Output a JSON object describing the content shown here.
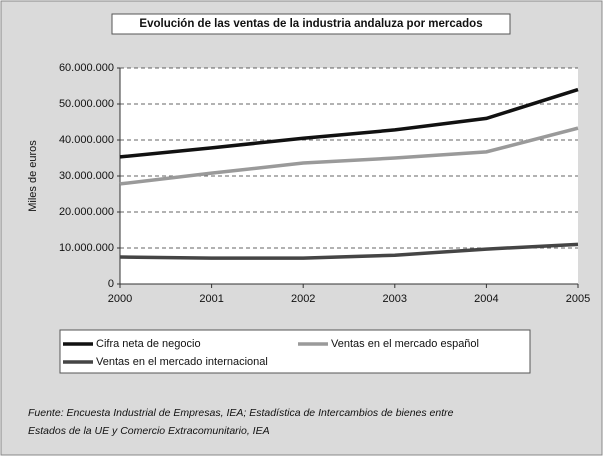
{
  "chart_data": {
    "type": "line",
    "title": "Evolución de las ventas de la industria andaluza por mercados",
    "y_label": "Miles de euros",
    "x": [
      2000,
      2001,
      2002,
      2003,
      2004,
      2005
    ],
    "xlim": [
      2000,
      2005
    ],
    "xticks": [
      2000,
      2001,
      2002,
      2003,
      2004,
      2005
    ],
    "ylim": [
      0,
      60000000
    ],
    "yticks": [
      0,
      {
        "value": 10000000,
        "label": "10.000.000"
      },
      {
        "value": 20000000,
        "label": "20.000.000"
      },
      {
        "value": 30000000,
        "label": "30.000.000"
      },
      {
        "value": 40000000,
        "label": "40.000.000"
      },
      {
        "value": 50000000,
        "label": "50.000.000"
      },
      {
        "value": 60000000,
        "label": "60.000.000"
      }
    ],
    "grid": true,
    "legend": "bottom",
    "series": [
      {
        "name": "Cifra neta de negocio",
        "color": "#111111",
        "values": [
          35300000,
          37800000,
          40500000,
          42800000,
          46000000,
          54000000
        ]
      },
      {
        "name": "Ventas en el mercado español",
        "color": "#9a9a9a",
        "values": [
          27800000,
          30800000,
          33600000,
          35000000,
          36700000,
          43300000
        ]
      },
      {
        "name": "Ventas en el mercado internacional",
        "color": "#454545",
        "values": [
          7500000,
          7200000,
          7200000,
          8000000,
          9700000,
          11000000
        ]
      }
    ],
    "source": [
      "Fuente: Encuesta Industrial de Empresas, IEA; Estadística de Intercambios de bienes entre",
      "Estados de la UE y Comercio Extracomunitario, IEA"
    ]
  }
}
